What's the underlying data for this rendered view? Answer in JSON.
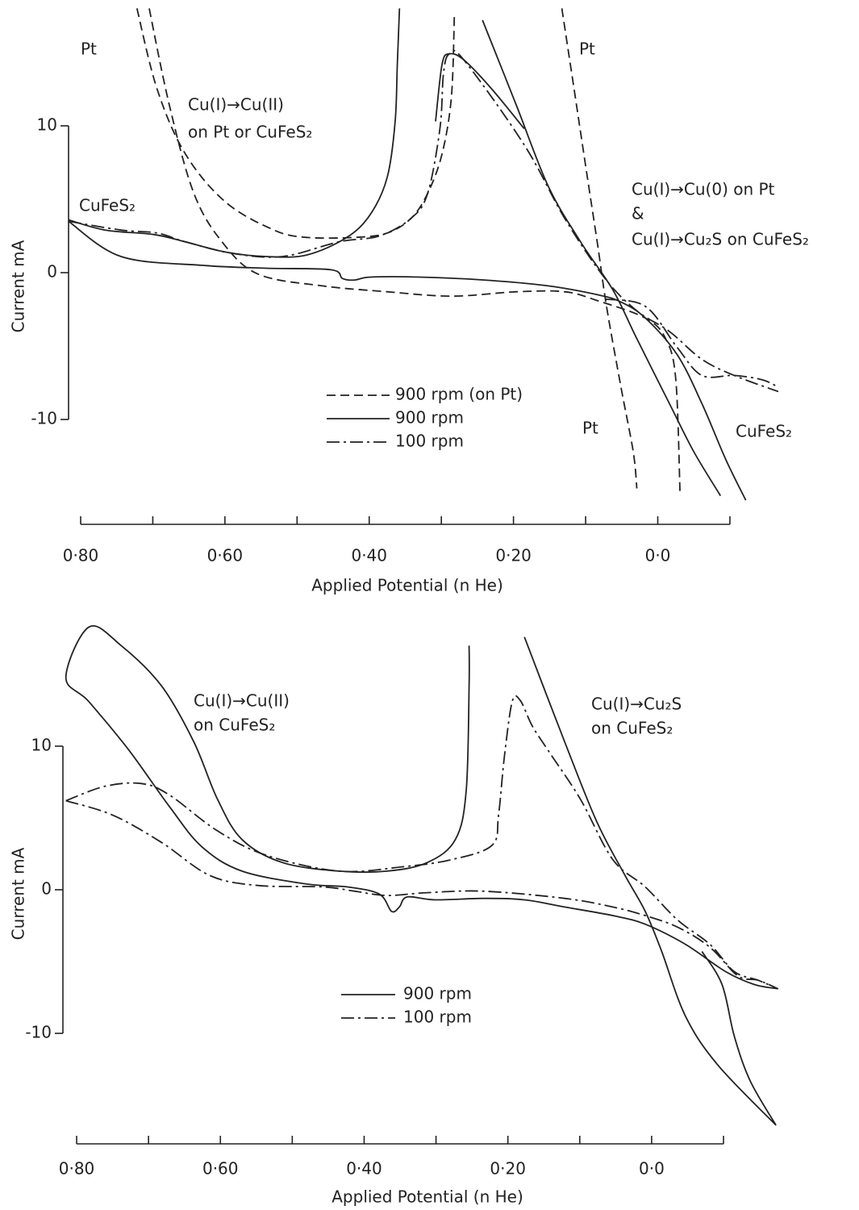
{
  "chart_data": [
    {
      "type": "line",
      "xlabel": "Applied Potential (n He)",
      "ylabel": "Current mA",
      "xlim": [
        0.82,
        -0.18
      ],
      "ylim": [
        -17,
        18
      ],
      "xticks": [
        {
          "value": 0.8,
          "label": "0·80"
        },
        {
          "value": 0.6,
          "label": "0·60"
        },
        {
          "value": 0.4,
          "label": "0·40"
        },
        {
          "value": 0.2,
          "label": "0·20"
        },
        {
          "value": 0,
          "label": "0·0"
        }
      ],
      "minor_xticks": [
        0.7,
        0.5,
        0.3,
        0.1,
        -0.1
      ],
      "yticks": [
        -10,
        0,
        10
      ],
      "annotations": [
        "Pt",
        "Cu(I)→Cu(II)",
        "on Pt or CuFeS₂",
        "CuFeS₂",
        "Pt",
        "Cu(I)→Cu(0) on Pt",
        "&",
        "Cu(I)→Cu₂S on CuFeS₂",
        "Pt",
        "CuFeS₂"
      ],
      "series": [
        {
          "name": "900 rpm (on Pt)",
          "color": "#222",
          "dash": "dashed",
          "x": [
            0.705,
            0.677,
            0.643,
            0.604,
            0.554,
            0.465,
            0.375,
            0.286,
            0.196,
            0.129,
            0.084,
            0.017,
            -0.011,
            -0.025,
            -0.031,
            null,
            0.722,
            0.694,
            0.655,
            0.599,
            0.532,
            0.487,
            0.42,
            0.375,
            0.342,
            0.319,
            0.299,
            0.286,
            0.282,
            null,
            0.133,
            0.116,
            0.101,
            0.084,
            0.071,
            0.051,
            0.034,
            0.029
          ],
          "values": [
            18,
            11.4,
            5.4,
            2.1,
            -0.1,
            -0.9,
            -1.3,
            -1.6,
            -1.3,
            -1.3,
            -1.9,
            -3.1,
            -4.5,
            -7.3,
            -15.2,
            null,
            18,
            12.5,
            8.1,
            4.8,
            2.9,
            2.4,
            2.4,
            2.7,
            3.7,
            5.4,
            8.1,
            12,
            17.5,
            null,
            18,
            12.5,
            7.6,
            2.1,
            -2.3,
            -7.8,
            -12.2,
            -14.7
          ]
        },
        {
          "name": "900 rpm",
          "color": "#222",
          "dash": "solid",
          "x": [
            0.817,
            0.766,
            0.699,
            0.655,
            0.599,
            0.543,
            0.487,
            0.431,
            0.398,
            0.375,
            0.364,
            0.361,
            0.358,
            null,
            0.817,
            0.744,
            0.632,
            0.543,
            0.453,
            0.437,
            0.42,
            0.398,
            0.33,
            0.241,
            0.152,
            0.084,
            0.051,
            0.017,
            -0.027,
            -0.061,
            -0.094,
            -0.122,
            null,
            0.243,
            0.196,
            0.152,
            0.107,
            0.062,
            0.029,
            -0.016,
            -0.05,
            -0.087,
            null,
            0.308,
            0.299,
            0.289,
            0.269,
            0.23,
            0.185
          ],
          "values": [
            3.6,
            2.9,
            2.6,
            2.1,
            1.4,
            1.1,
            1.2,
            2.4,
            4.0,
            6.5,
            10.3,
            14.2,
            18,
            null,
            3.5,
            1.1,
            0.5,
            0.3,
            0.2,
            -0.4,
            -0.5,
            -0.3,
            -0.3,
            -0.5,
            -0.9,
            -1.5,
            -2.0,
            -3.1,
            -5.6,
            -8.9,
            -12.7,
            -15.5,
            null,
            17.2,
            11.4,
            5.9,
            2.1,
            -1.2,
            -4.5,
            -8.9,
            -12.2,
            -15.2,
            null,
            10.3,
            14.2,
            14.9,
            14.5,
            12.5,
            9.8
          ]
        },
        {
          "name": "100 rpm",
          "color": "#222",
          "dash": "dashdot",
          "x": [
            0.817,
            0.744,
            0.694,
            0.655,
            0.588,
            0.52,
            0.442,
            0.386,
            0.342,
            0.319,
            0.302,
            0.297,
            0.289,
            0.269,
            0.185,
            0.129,
            0.073,
            0.029,
            -0.016,
            -0.061,
            -0.106,
            -0.167,
            null,
            0.073,
            0.017,
            -0.027,
            -0.061,
            -0.106,
            -0.145,
            -0.167
          ],
          "values": [
            3.5,
            2.9,
            2.7,
            2.1,
            1.3,
            1.1,
            2.1,
            2.5,
            3.7,
            5.4,
            9.8,
            13.6,
            14.9,
            14.5,
            8.7,
            3.7,
            -0.4,
            -2.6,
            -4.0,
            -5.9,
            -7.0,
            -8.1,
            null,
            -1.8,
            -2.3,
            -5.1,
            -7.0,
            -7.0,
            -7.3,
            -7.8
          ]
        }
      ]
    },
    {
      "type": "line",
      "xlabel": "Applied Potential (n He)",
      "ylabel": "Current mA",
      "xlim": [
        0.82,
        -0.18
      ],
      "ylim": [
        -18,
        19
      ],
      "xticks": [
        {
          "value": 0.8,
          "label": "0·80"
        },
        {
          "value": 0.6,
          "label": "0·60"
        },
        {
          "value": 0.4,
          "label": "0·40"
        },
        {
          "value": 0.2,
          "label": "0·20"
        },
        {
          "value": 0,
          "label": "0·0"
        }
      ],
      "minor_xticks": [
        0.7,
        0.5,
        0.3,
        0.1,
        -0.1
      ],
      "yticks": [
        -10,
        0,
        10
      ],
      "annotations": [
        "Cu(I)→Cu(II)",
        "on CuFeS₂",
        "Cu(I)→Cu₂S",
        "on CuFeS₂"
      ],
      "series": [
        {
          "name": "900 rpm",
          "color": "#222",
          "dash": "solid",
          "x": [
            0.254,
            0.254,
            0.258,
            0.273,
            0.312,
            0.368,
            0.435,
            0.514,
            0.57,
            0.604,
            0.637,
            0.682,
            0.738,
            0.783,
            0.815,
            0.783,
            0.727,
            0.671,
            0.626,
            0.57,
            0.48,
            0.424,
            0.379,
            0.362,
            0.351,
            0.34,
            0.301,
            0.233,
            0.177,
            0.121,
            0.054,
            0.009,
            -0.047,
            -0.103,
            -0.143,
            -0.176,
            null,
            0.177,
            0.121,
            0.076,
            0.037,
            0.009,
            -0.014,
            -0.047,
            -0.092,
            -0.173,
            null,
            -0.07,
            -0.098,
            -0.115,
            -0.137,
            -0.173
          ],
          "values": [
            17.0,
            14.2,
            6.9,
            3.5,
            1.9,
            1.3,
            1.3,
            1.9,
            3.5,
            6.3,
            10.3,
            14.2,
            17.0,
            18.3,
            14.8,
            13.1,
            9.7,
            5.8,
            3.0,
            1.3,
            0.4,
            0.2,
            -0.3,
            -1.5,
            -1.2,
            -0.5,
            -0.7,
            -0.6,
            -0.7,
            -1.2,
            -1.8,
            -2.4,
            -3.8,
            -5.7,
            -6.6,
            -6.9,
            null,
            17.6,
            10.3,
            4.7,
            1.0,
            -1.5,
            -4.3,
            -8.8,
            -12.2,
            -16.4,
            null,
            -4.3,
            -6.6,
            -10.2,
            -13.3,
            -16.4
          ]
        },
        {
          "name": "100 rpm",
          "color": "#222",
          "dash": "dashdot",
          "x": [
            0.815,
            0.761,
            0.71,
            0.671,
            0.604,
            0.536,
            0.435,
            0.346,
            0.278,
            0.222,
            0.213,
            0.205,
            0.194,
            0.183,
            0.166,
            0.144,
            0.099,
            0.054,
            0.009,
            -0.036,
            -0.081,
            -0.115,
            -0.148,
            -0.176,
            null,
            0.815,
            0.75,
            0.682,
            0.615,
            0.548,
            0.458,
            0.413,
            0.368,
            0.312,
            0.233,
            0.121,
            0.054,
            0.009,
            -0.036,
            -0.081,
            -0.12,
            -0.148,
            -0.176
          ],
          "values": [
            6.2,
            7.2,
            7.4,
            6.6,
            4.1,
            2.4,
            1.3,
            1.6,
            2.1,
            3.1,
            5.2,
            9.2,
            13.1,
            13.2,
            11.4,
            9.7,
            6.3,
            2.1,
            0.2,
            -2.1,
            -3.8,
            -5.7,
            -6.3,
            -6.9,
            null,
            6.2,
            5.2,
            3.3,
            1.0,
            0.3,
            0.2,
            -0.1,
            -0.4,
            -0.2,
            -0.1,
            -0.6,
            -1.2,
            -1.8,
            -2.6,
            -4.0,
            -6.0,
            -6.3,
            -6.9
          ]
        }
      ]
    }
  ]
}
